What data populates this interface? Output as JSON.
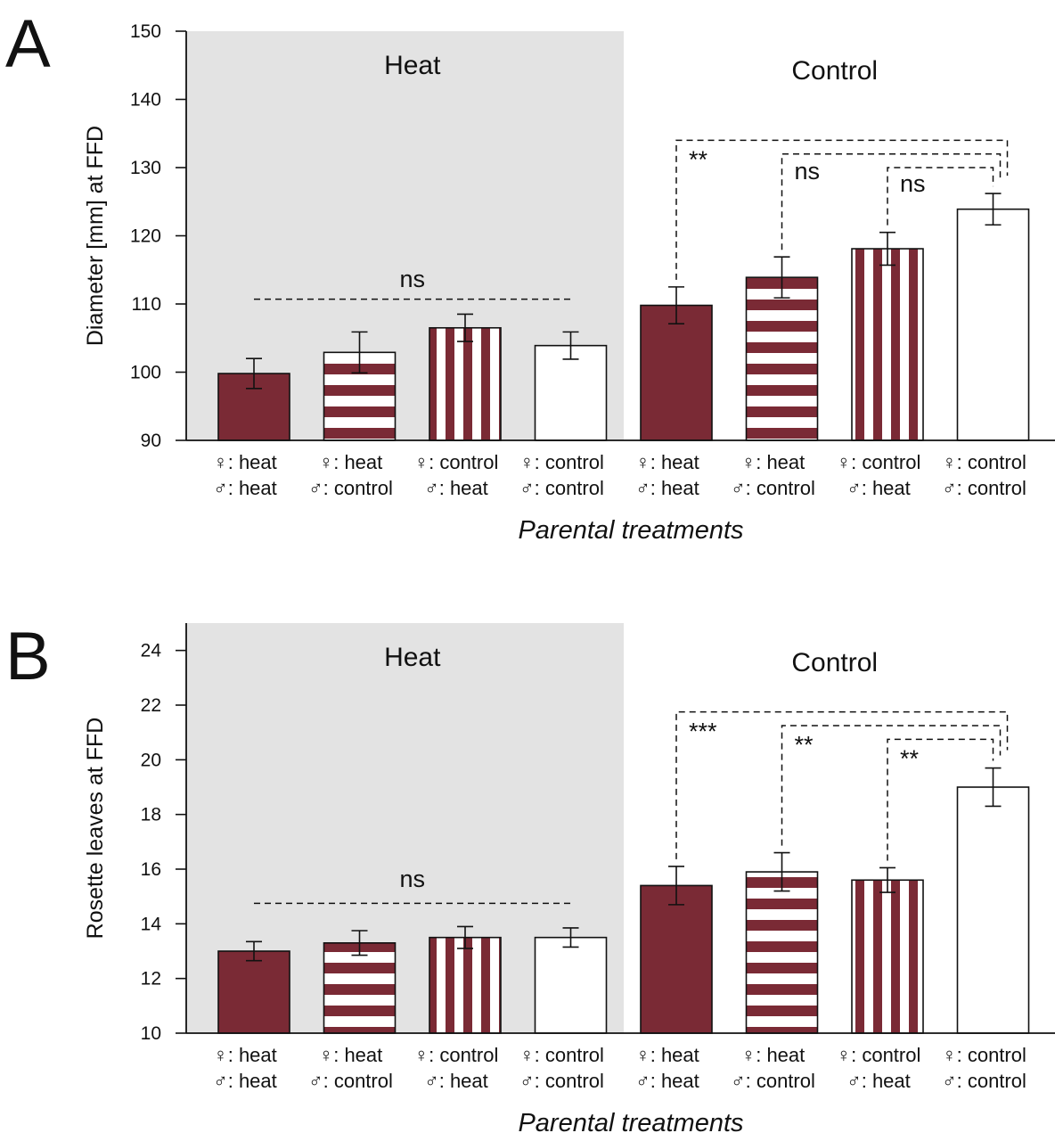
{
  "colors": {
    "bar": "#7a2a35",
    "heat_bg": "#e3e3e3",
    "axis": "#111111",
    "white": "#ffffff"
  },
  "chart_data": [
    {
      "panel": "A",
      "type": "bar",
      "ylabel": "Diameter [mm] at FFD",
      "xlabel": "Parental treatments",
      "ylim": [
        90,
        150
      ],
      "yticks": [
        90,
        100,
        110,
        120,
        130,
        140,
        150
      ],
      "groups": [
        {
          "label": "Heat",
          "shaded": true,
          "categories": [
            0,
            1,
            2,
            3
          ]
        },
        {
          "label": "Control",
          "shaded": false,
          "categories": [
            4,
            5,
            6,
            7
          ]
        }
      ],
      "categories": [
        {
          "female": "♀: heat",
          "male": "♂: heat",
          "pattern": "solid"
        },
        {
          "female": "♀: heat",
          "male": "♂: control",
          "pattern": "horizontal"
        },
        {
          "female": "♀: control",
          "male": "♂: heat",
          "pattern": "vertical"
        },
        {
          "female": "♀: control",
          "male": "♂: control",
          "pattern": "white"
        },
        {
          "female": "♀: heat",
          "male": "♂: heat",
          "pattern": "solid"
        },
        {
          "female": "♀: heat",
          "male": "♂: control",
          "pattern": "horizontal"
        },
        {
          "female": "♀: control",
          "male": "♂: heat",
          "pattern": "vertical"
        },
        {
          "female": "♀: control",
          "male": "♂: control",
          "pattern": "white"
        }
      ],
      "values": [
        99.8,
        102.9,
        106.5,
        103.9,
        109.8,
        113.9,
        118.1,
        123.9
      ],
      "errors": [
        2.2,
        3.0,
        2.0,
        2.0,
        2.7,
        3.0,
        2.4,
        2.3
      ],
      "annotations": [
        {
          "text": "ns",
          "type": "span",
          "from": 0,
          "to": 3,
          "y": 110.7,
          "text_y": 112.5
        },
        {
          "text": "**",
          "type": "bracket",
          "from": 4,
          "to": 7,
          "top": 134.0,
          "text_y": 130.0
        },
        {
          "text": "ns",
          "type": "bracket",
          "from": 5,
          "to": 7,
          "top": 132.0,
          "text_y": 128.3
        },
        {
          "text": "ns",
          "type": "bracket",
          "from": 6,
          "to": 7,
          "top": 130.0,
          "text_y": 126.5
        }
      ]
    },
    {
      "panel": "B",
      "type": "bar",
      "ylabel": "Rosette leaves at FFD",
      "xlabel": "Parental treatments",
      "ylim": [
        10,
        25
      ],
      "yticks": [
        10,
        12,
        14,
        16,
        18,
        20,
        22,
        24
      ],
      "groups": [
        {
          "label": "Heat",
          "shaded": true,
          "categories": [
            0,
            1,
            2,
            3
          ]
        },
        {
          "label": "Control",
          "shaded": false,
          "categories": [
            4,
            5,
            6,
            7
          ]
        }
      ],
      "categories": [
        {
          "female": "♀: heat",
          "male": "♂: heat",
          "pattern": "solid"
        },
        {
          "female": "♀: heat",
          "male": "♂: control",
          "pattern": "horizontal"
        },
        {
          "female": "♀: control",
          "male": "♂: heat",
          "pattern": "vertical"
        },
        {
          "female": "♀: control",
          "male": "♂: control",
          "pattern": "white"
        },
        {
          "female": "♀: heat",
          "male": "♂: heat",
          "pattern": "solid"
        },
        {
          "female": "♀: heat",
          "male": "♂: control",
          "pattern": "horizontal"
        },
        {
          "female": "♀: control",
          "male": "♂: heat",
          "pattern": "vertical"
        },
        {
          "female": "♀: control",
          "male": "♂: control",
          "pattern": "white"
        }
      ],
      "values": [
        13.0,
        13.3,
        13.5,
        13.5,
        15.4,
        15.9,
        15.6,
        19.0
      ],
      "errors": [
        0.35,
        0.45,
        0.4,
        0.35,
        0.7,
        0.7,
        0.45,
        0.7
      ],
      "annotations": [
        {
          "text": "ns",
          "type": "span",
          "from": 0,
          "to": 3,
          "y": 14.75,
          "text_y": 15.35
        },
        {
          "text": "***",
          "type": "bracket",
          "from": 4,
          "to": 7,
          "top": 21.75,
          "text_y": 20.75
        },
        {
          "text": "**",
          "type": "bracket",
          "from": 5,
          "to": 7,
          "top": 21.25,
          "text_y": 20.25
        },
        {
          "text": "**",
          "type": "bracket",
          "from": 6,
          "to": 7,
          "top": 20.75,
          "text_y": 19.75
        }
      ]
    }
  ]
}
